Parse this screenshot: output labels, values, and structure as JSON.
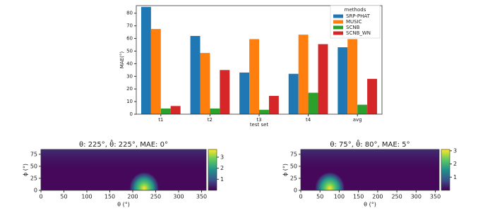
{
  "chart_data": [
    {
      "type": "bar",
      "xlabel": "test set",
      "ylabel": "MAE(°)",
      "categories": [
        "t1",
        "t2",
        "t3",
        "t4",
        "avg"
      ],
      "series": [
        {
          "name": "SRP-PHAT",
          "color": "#1f77b4",
          "values": [
            85,
            62,
            33,
            32,
            53
          ]
        },
        {
          "name": "MUSIC",
          "color": "#ff7f0e",
          "values": [
            67.5,
            48.5,
            59.5,
            63,
            59.5
          ]
        },
        {
          "name": "SCNB",
          "color": "#2ca02c",
          "values": [
            4.5,
            4.5,
            3.5,
            17,
            7.5
          ]
        },
        {
          "name": "SCNB_WN",
          "color": "#d62728",
          "values": [
            6.5,
            35,
            14.5,
            55.5,
            28
          ]
        }
      ],
      "ylim": [
        0,
        86
      ],
      "yticks": [
        0,
        10,
        20,
        30,
        40,
        50,
        60,
        70,
        80
      ],
      "legend_title": "methods",
      "legend": "upper right"
    },
    {
      "type": "heatmap",
      "title": "θ: 225°, θ̂: 225°, MAE: 0°",
      "xlabel": "θ (°)",
      "ylabel": "ϕ (°)",
      "xlim": [
        0,
        360
      ],
      "xticks": [
        0,
        50,
        100,
        150,
        200,
        250,
        300,
        350
      ],
      "ylim": [
        0,
        85
      ],
      "yticks": [
        0,
        25,
        50,
        75
      ],
      "colorbar_lim": [
        0,
        3.7
      ],
      "colorbar_ticks": [
        1,
        2,
        3
      ]
    },
    {
      "type": "heatmap",
      "title": "θ: 75°, θ̂: 80°, MAE: 5°",
      "xlabel": "θ (°)",
      "ylabel": "ϕ (°)",
      "xlim": [
        0,
        360
      ],
      "xticks": [
        0,
        50,
        100,
        150,
        200,
        250,
        300,
        350
      ],
      "ylim": [
        0,
        85
      ],
      "yticks": [
        0,
        25,
        50,
        75
      ],
      "colorbar_lim": [
        0,
        3.1
      ],
      "colorbar_ticks": [
        1,
        2,
        3
      ]
    }
  ]
}
